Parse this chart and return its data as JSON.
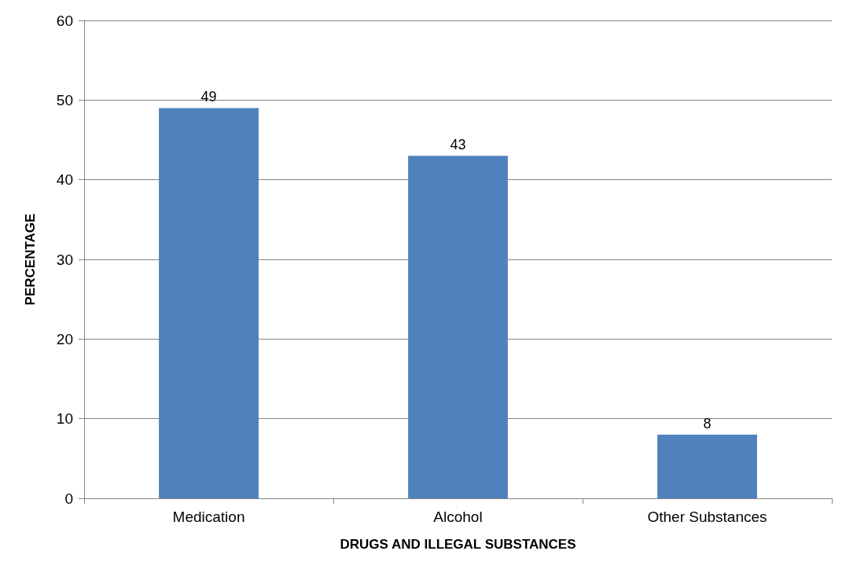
{
  "chart_data": {
    "type": "bar",
    "xlabel": "DRUGS AND ILLEGAL SUBSTANCES",
    "ylabel": "PERCENTAGE",
    "categories": [
      "Medication",
      "Alcohol",
      "Other Substances"
    ],
    "values": [
      49,
      43,
      8
    ],
    "color": "#4f81bd",
    "ylim": [
      0,
      60
    ],
    "yticks": [
      0,
      10,
      20,
      30,
      40,
      50,
      60
    ],
    "grid": "y",
    "data_labels": true
  }
}
